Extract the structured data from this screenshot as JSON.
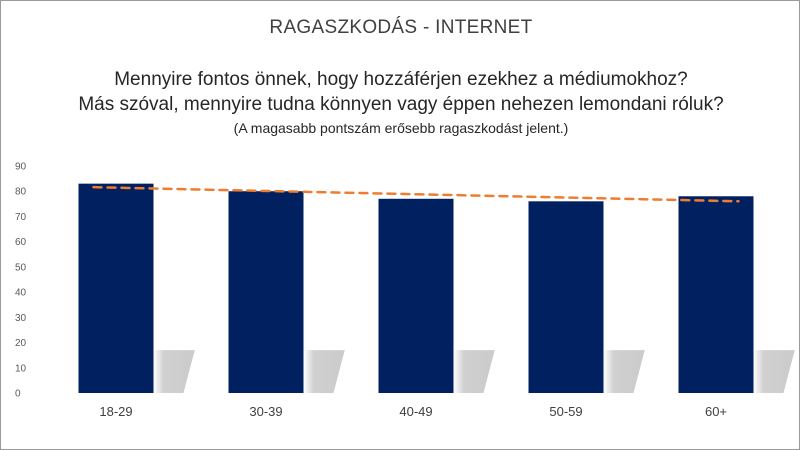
{
  "title": "RAGASZKODÁS - INTERNET",
  "subtitle_line1": "Mennyire fontos önnek, hogy hozzáférjen ezekhez a médiumokhoz?",
  "subtitle_line2": "Más szóval, mennyire tudna könnyen vagy éppen nehezen lemondani róluk?",
  "note": "(A magasabb pontszám erősebb ragaszkodást jelent.)",
  "chart_data": {
    "type": "bar",
    "categories": [
      "18-29",
      "30-39",
      "40-49",
      "50-59",
      "60+"
    ],
    "values": [
      83,
      80,
      77,
      76,
      78
    ],
    "ylim": [
      0,
      90
    ],
    "yticks": [
      0,
      10,
      20,
      30,
      40,
      50,
      60,
      70,
      80,
      90
    ],
    "trendline": {
      "type": "linear",
      "style": "dashed",
      "color": "#ED7D31"
    },
    "bar_color": "#002060",
    "grid": false,
    "legend": "none",
    "xlabel": "",
    "ylabel": ""
  }
}
